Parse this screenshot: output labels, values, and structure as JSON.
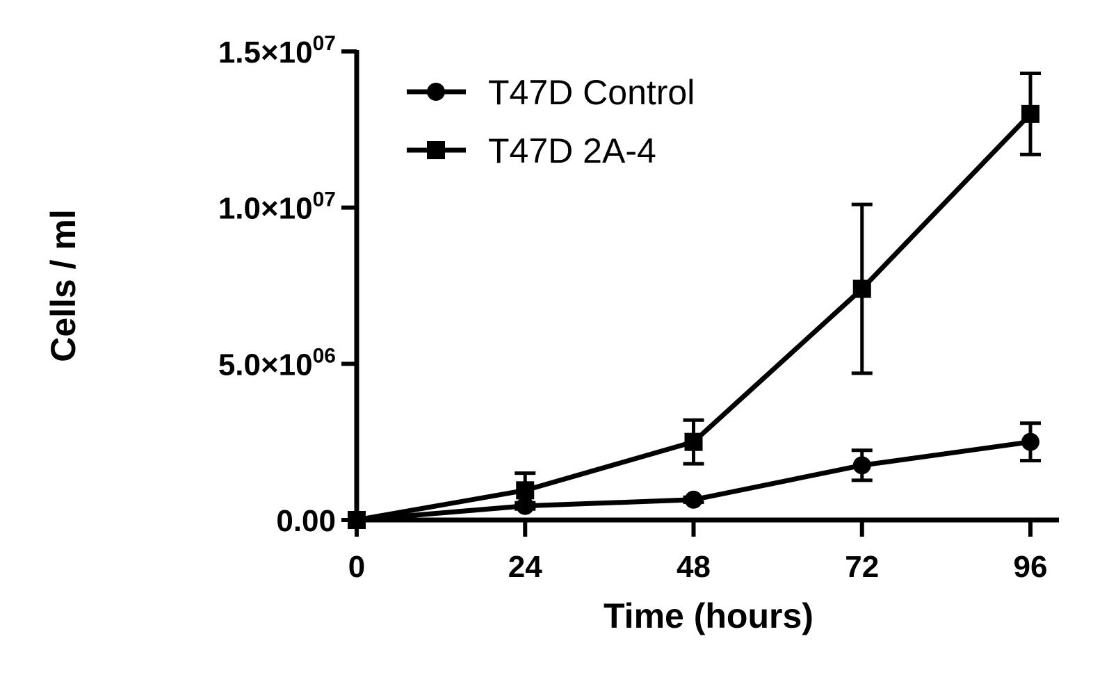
{
  "chart_data": {
    "type": "line",
    "xlabel": "Time (hours)",
    "ylabel": "Cells / ml",
    "x": [
      0,
      24,
      48,
      72,
      96
    ],
    "xlim": [
      0,
      96
    ],
    "ylim": [
      0,
      15000000
    ],
    "x_ticks": [
      "0",
      "24",
      "48",
      "72",
      "96"
    ],
    "y_ticks": [
      {
        "value": 0,
        "label": "0.00",
        "exp": ""
      },
      {
        "value": 5000000,
        "label": "5.0×10",
        "exp": "06"
      },
      {
        "value": 10000000,
        "label": "1.0×10",
        "exp": "07"
      },
      {
        "value": 15000000,
        "label": "1.5×10",
        "exp": "07"
      }
    ],
    "grid": false,
    "legend_position": "top-left",
    "series": [
      {
        "name": "T47D Control",
        "marker": "circle",
        "values": [
          0,
          450000,
          650000,
          1750000,
          2500000
        ],
        "errors": [
          0,
          100000,
          80000,
          480000,
          600000
        ]
      },
      {
        "name": "T47D 2A-4",
        "marker": "square",
        "values": [
          0,
          950000,
          2500000,
          7400000,
          13000000
        ],
        "errors": [
          0,
          550000,
          700000,
          2700000,
          1300000
        ]
      }
    ]
  }
}
